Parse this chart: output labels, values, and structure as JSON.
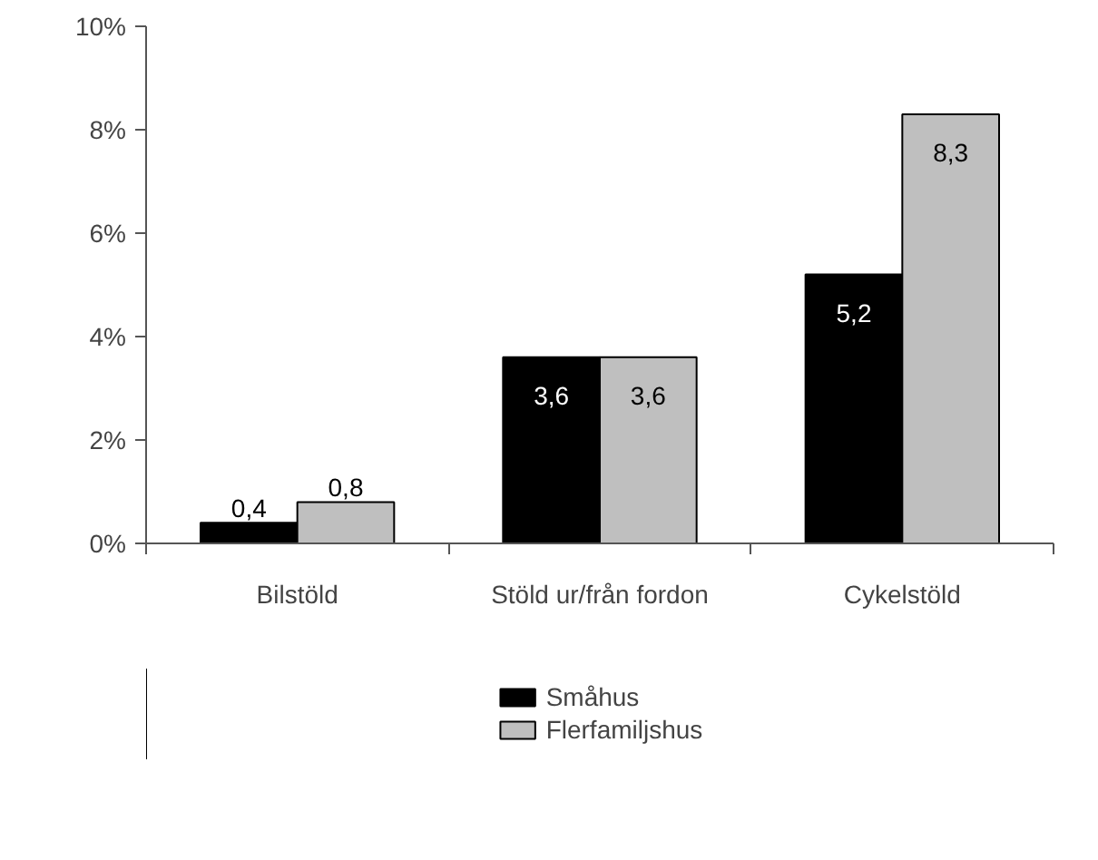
{
  "chart_data": {
    "type": "bar",
    "categories": [
      "Bilstöld",
      "Stöld ur/från fordon",
      "Cykelstöld"
    ],
    "series": [
      {
        "name": "Småhus",
        "color": "#000000",
        "values": [
          0.4,
          3.6,
          5.2
        ],
        "value_labels": [
          "0,4",
          "3,6",
          "5,2"
        ]
      },
      {
        "name": "Flerfamiljshus",
        "color": "#bfbfbf",
        "values": [
          0.8,
          3.6,
          8.3
        ],
        "value_labels": [
          "0,8",
          "3,6",
          "8,3"
        ]
      }
    ],
    "ylim": [
      0,
      10
    ],
    "yticks": [
      {
        "value": 0,
        "label": "0%"
      },
      {
        "value": 2,
        "label": "2%"
      },
      {
        "value": 4,
        "label": "4%"
      },
      {
        "value": 6,
        "label": "6%"
      },
      {
        "value": 8,
        "label": "8%"
      },
      {
        "value": 10,
        "label": "10%"
      }
    ],
    "grid": false,
    "legend": "bottom"
  }
}
